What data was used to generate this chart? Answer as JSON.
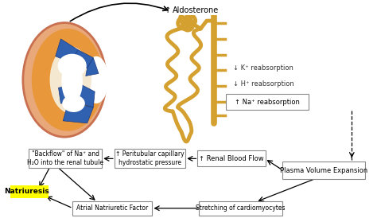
{
  "bg_color": "#ffffff",
  "tubule_color": "#d4a030",
  "kidney_outer_color": "#e8956a",
  "kidney_inner_color": "#d4834a",
  "kidney_rim_color": "#c87050",
  "blue_color": "#3060b0",
  "blue_dark": "#1a3a80",
  "text_aldosterone": "Aldosterone",
  "text_k": "↓ K⁺ reabsorption",
  "text_h": "↓ H⁺ reabsorption",
  "text_na": "↑ Na⁺ reabsorption",
  "text_backflow": "\"Backflow\" of Na⁺ and\nH₂O into the renal tubule",
  "text_peritubular": "↑ Peritubular capillary\nhydrostatic pressure",
  "text_renal": "↑ Renal Blood Flow",
  "text_plasma": "Plasma Volume Expansion",
  "text_natriuresis": "Natriuresis",
  "text_atrial": "Atrial Natriuretic Factor",
  "text_stretching": "Stretching of cardiomyocytes",
  "arrow_up": "↑"
}
